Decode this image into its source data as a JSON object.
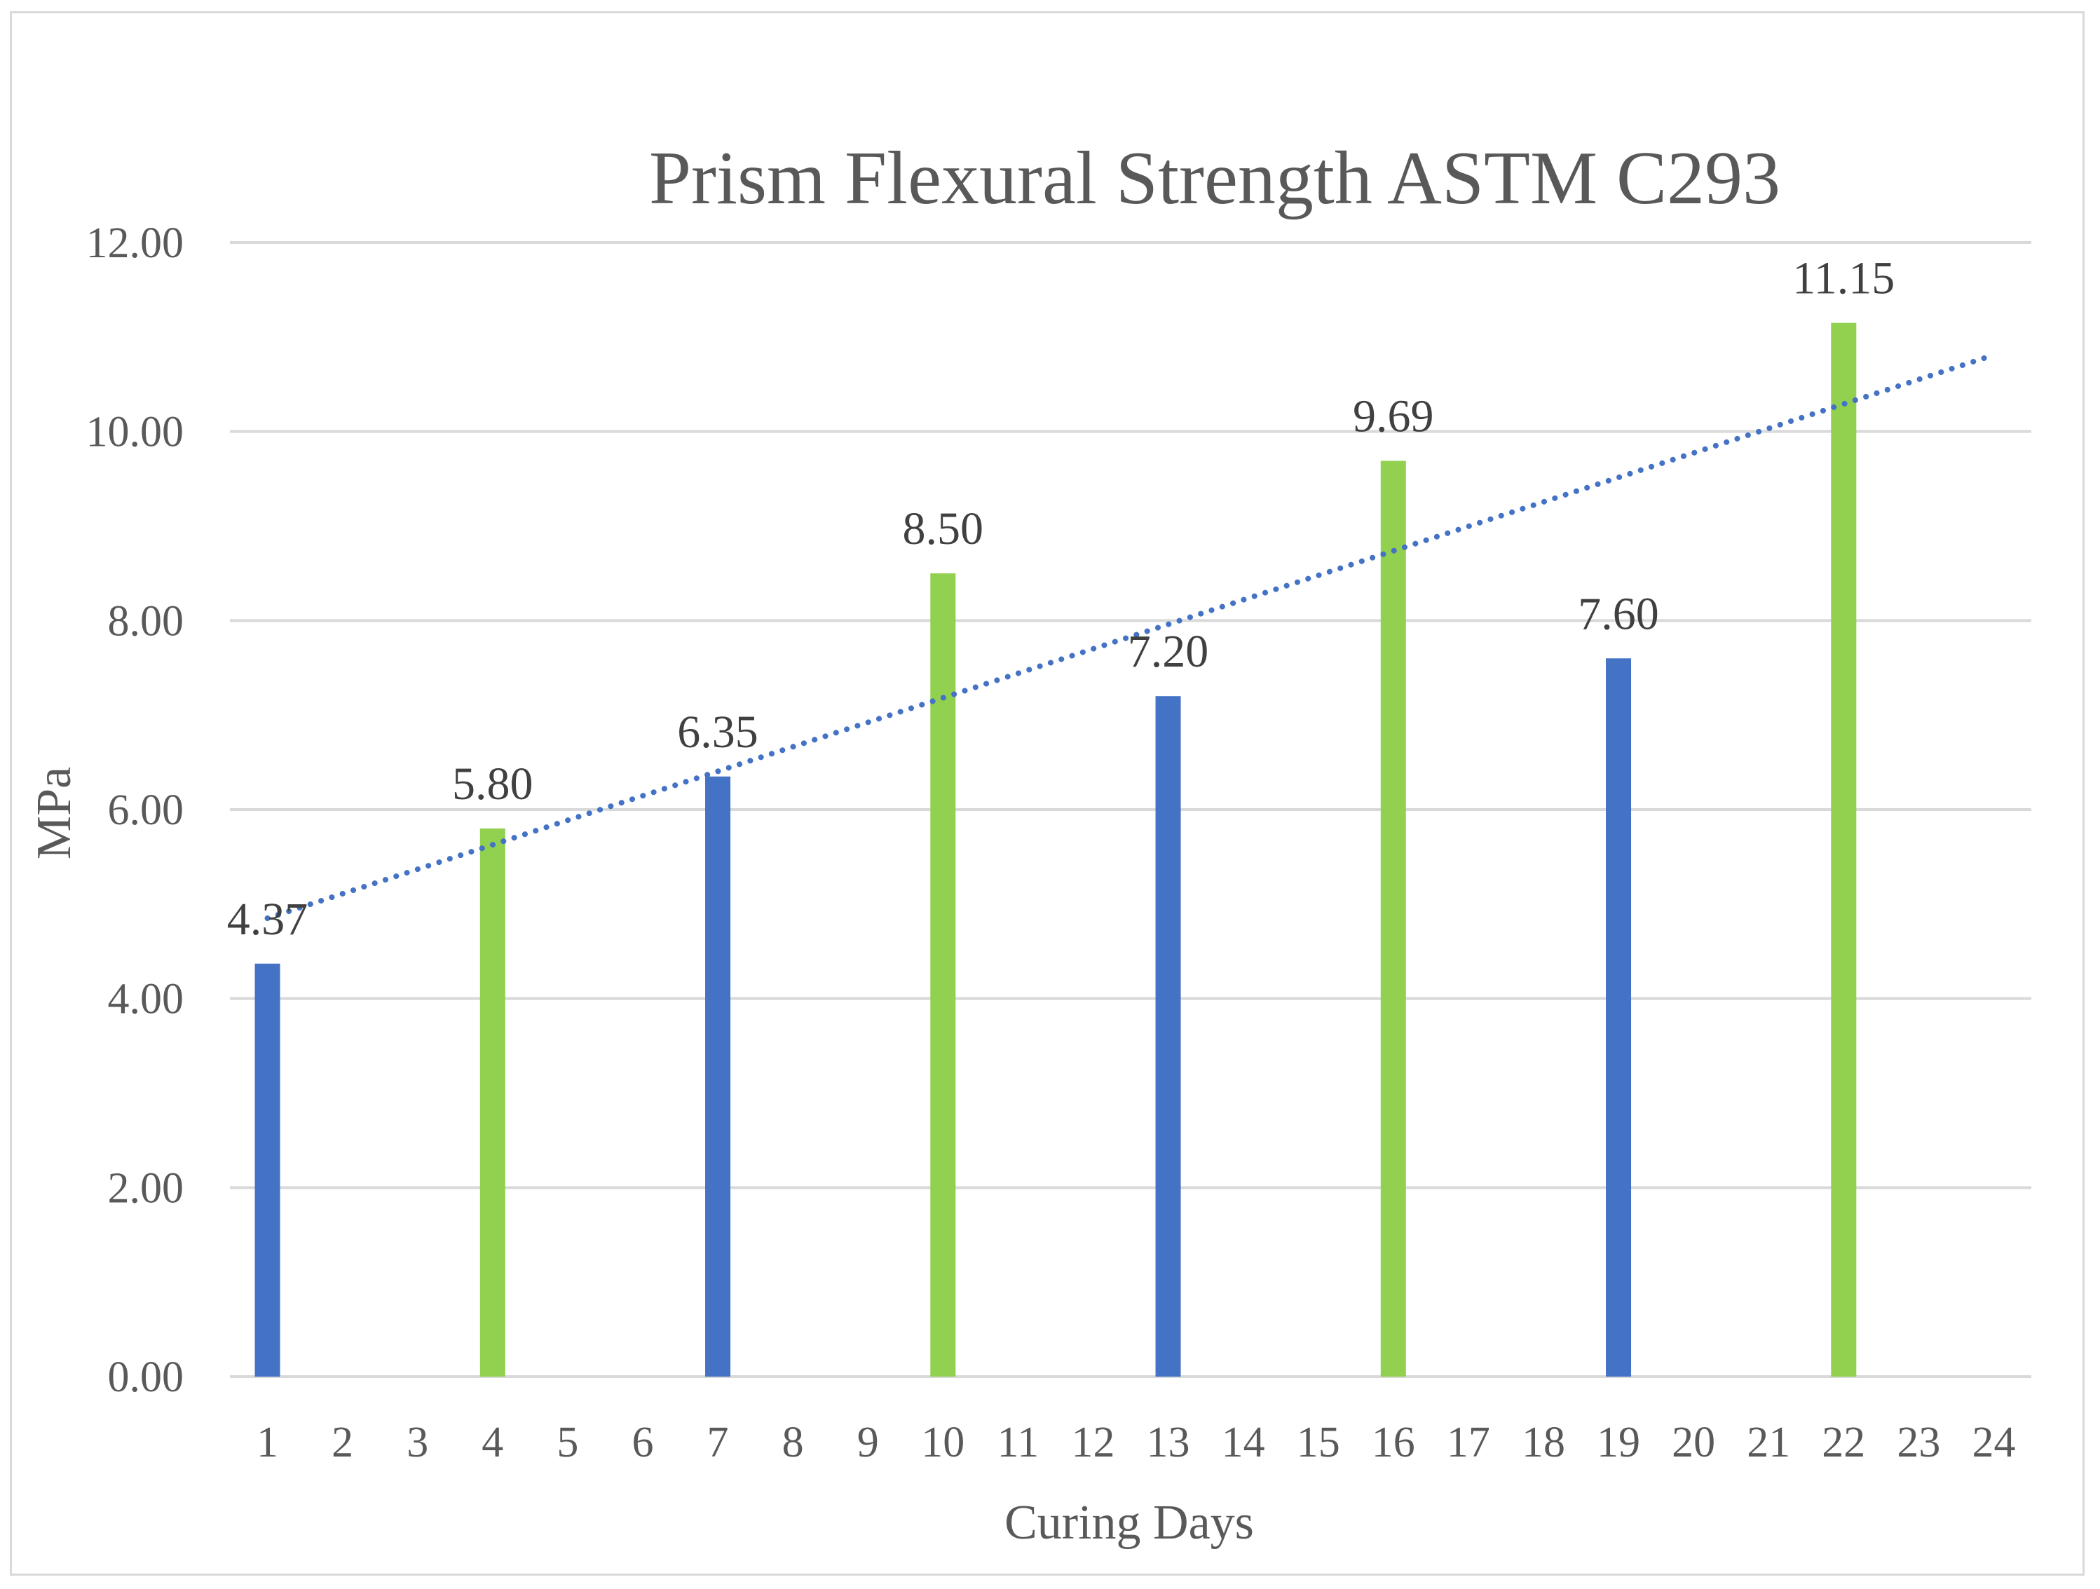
{
  "chart_data": {
    "type": "bar",
    "title": "Prism Flexural Strength ASTM C293",
    "xlabel": "Curing Days",
    "ylabel": "MPa",
    "categories": [
      "1",
      "2",
      "3",
      "4",
      "5",
      "6",
      "7",
      "8",
      "9",
      "10",
      "11",
      "12",
      "13",
      "14",
      "15",
      "16",
      "17",
      "18",
      "19",
      "20",
      "21",
      "22",
      "23",
      "24"
    ],
    "values": [
      4.37,
      null,
      null,
      5.8,
      null,
      null,
      6.35,
      null,
      null,
      8.5,
      null,
      null,
      7.2,
      null,
      null,
      9.69,
      null,
      null,
      7.6,
      null,
      null,
      11.15,
      null,
      null
    ],
    "bar_colors": [
      "#4472c4",
      null,
      null,
      "#92d050",
      null,
      null,
      "#4472c4",
      null,
      null,
      "#92d050",
      null,
      null,
      "#4472c4",
      null,
      null,
      "#92d050",
      null,
      null,
      "#4472c4",
      null,
      null,
      "#92d050",
      null,
      null
    ],
    "data_labels": [
      "4.37",
      "",
      "",
      "5.80",
      "",
      "",
      "6.35",
      "",
      "",
      "8.50",
      "",
      "",
      "7.20",
      "",
      "",
      "9.69",
      "",
      "",
      "7.60",
      "",
      "",
      "11.15",
      "",
      ""
    ],
    "ylim": [
      0,
      12
    ],
    "yticks": [
      "0.00",
      "2.00",
      "4.00",
      "6.00",
      "8.00",
      "10.00",
      "12.00"
    ],
    "grid": true,
    "legend": "none",
    "trendline": {
      "type": "linear",
      "style": "dotted",
      "color": "#4472c4",
      "x_range": [
        1,
        24
      ],
      "y_start": 4.85,
      "y_end": 10.81
    }
  }
}
